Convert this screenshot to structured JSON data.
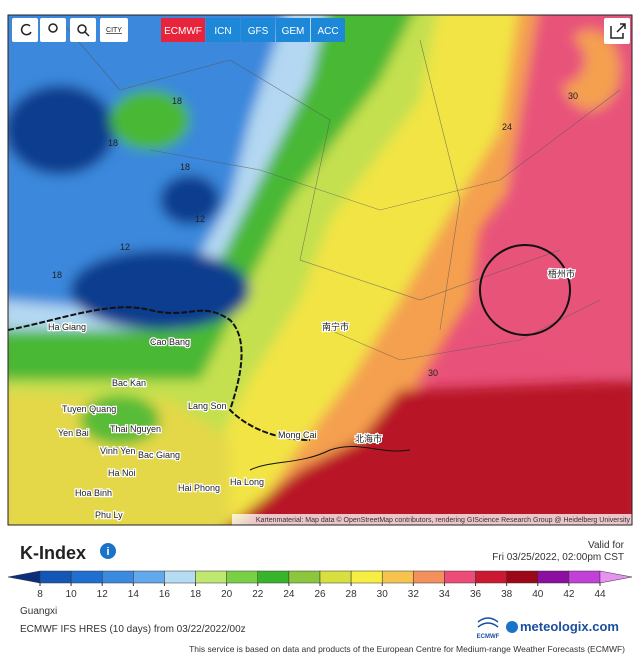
{
  "toolbar": {
    "city_button": "CITY",
    "models": [
      "ECMWF",
      "ICN",
      "GFS",
      "GEM",
      "ACC"
    ],
    "active_model": "ECMWF"
  },
  "map": {
    "place_labels": [
      "Ha Giang",
      "Cao Bang",
      "Bac Kan",
      "Tuyen Quang",
      "Thai Nguyen",
      "Yen Bai",
      "Lang Son",
      "Vinh Yen",
      "Bac Giang",
      "Ha Noi",
      "Hai Phong",
      "Ha Long",
      "Hoa Binh",
      "Phu Ly",
      "Mong Cai",
      "梧州市",
      "南宁市",
      "北海市"
    ],
    "contour_labels": [
      18,
      18,
      18,
      12,
      12,
      18,
      24,
      30,
      30
    ],
    "attribution": "Kartenmaterial: Map data © OpenStreetMap contributors, rendering GIScience Research Group @ Heidelberg University"
  },
  "legend": {
    "title": "K-Index",
    "valid_label": "Valid for",
    "valid_time": "Fri 03/25/2022, 02:00pm CST",
    "ticks": [
      8,
      10,
      12,
      14,
      16,
      18,
      20,
      22,
      24,
      26,
      28,
      30,
      32,
      34,
      36,
      38,
      40,
      42,
      44
    ],
    "colors": [
      "#0b2f7a",
      "#1456b4",
      "#1e6fd0",
      "#3a8ae0",
      "#62a8ec",
      "#b6dcf4",
      "#bfe870",
      "#7ad044",
      "#38b42c",
      "#8cc63c",
      "#d8e040",
      "#f6ee40",
      "#f6c44c",
      "#f4905c",
      "#ee4c78",
      "#cc1830",
      "#9c0818",
      "#8c10a0",
      "#c040d8",
      "#e892f0"
    ]
  },
  "footer": {
    "region": "Guangxi",
    "model_run": "ECMWF IFS HRES (10 days) from 03/22/2022/00z",
    "ecmwf_logo": "ECMWF",
    "brand": "meteologix.com",
    "notice": "This service is based on data and products of the European Centre for Medium-range Weather Forecasts (ECMWF)"
  }
}
